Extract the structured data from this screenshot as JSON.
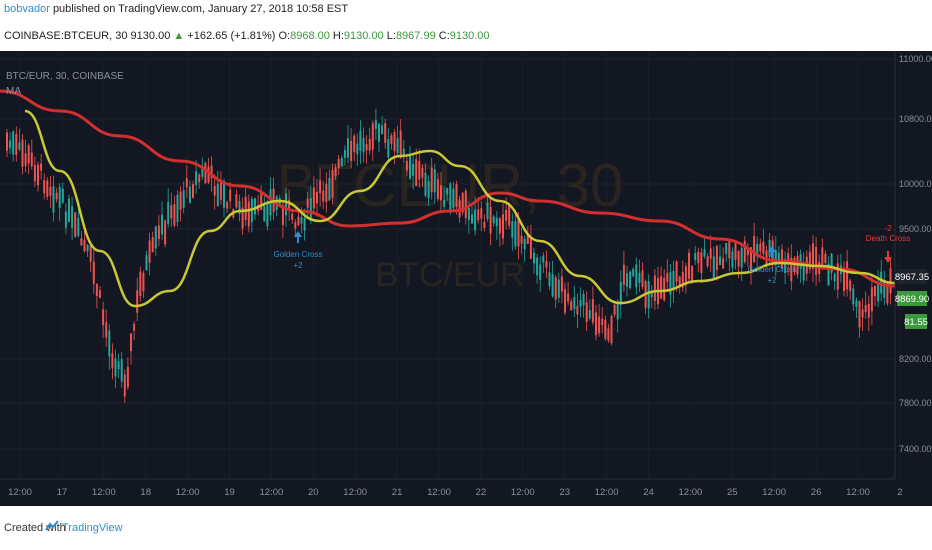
{
  "header": {
    "author": "bobvador",
    "published_text": "published on TradingView.com, January 27, 2018 10:58 EST"
  },
  "symbol_bar": {
    "symbol": "COINBASE:BTCEUR, 30",
    "last": "9130.00",
    "change": "+162.65 (+1.81%)",
    "o_label": "O:",
    "o_value": "8968.00",
    "h_label": "H:",
    "h_value": "9130.00",
    "l_label": "L:",
    "l_value": "8967.99",
    "c_label": "C:",
    "c_value": "9130.00"
  },
  "chart": {
    "pane_title": "BTC/EUR, 30, COINBASE",
    "indicator": "MA",
    "watermark_main": "BTCEUR, 30",
    "watermark_sub": "BTC/EUR",
    "price_ticks": [
      "11000.00",
      "10800.00",
      "10000.00",
      "9500.00",
      "8967.35",
      "8869.90",
      "8200.00",
      "7800.00",
      "7400.00"
    ],
    "price_labels": {
      "current": "8967.35",
      "green": "8869.90",
      "partial": "81.55"
    },
    "time_ticks": [
      "12:00",
      "17",
      "12:00",
      "18",
      "12:00",
      "19",
      "12:00",
      "20",
      "12:00",
      "21",
      "12:00",
      "22",
      "12:00",
      "23",
      "12:00",
      "24",
      "12:00",
      "25",
      "12:00",
      "26",
      "12:00",
      "2"
    ],
    "annotations": [
      {
        "text": "Golden Cross",
        "value": "+2",
        "color": "#2a8fd6"
      },
      {
        "text": "Golden Cross",
        "value": "+2",
        "color": "#2a8fd6"
      },
      {
        "text": "Death Cross",
        "value": "-2",
        "color": "#e53935"
      }
    ],
    "colors": {
      "background": "#131722",
      "ma_fast": "#c8c835",
      "ma_slow": "#d32f2f",
      "up": "#26a69a",
      "down": "#ef5350",
      "annotation_gold": "#2a8fd6",
      "annotation_death": "#e53935"
    }
  },
  "footer": {
    "created_with": "Created with",
    "brand": "TradingView"
  }
}
